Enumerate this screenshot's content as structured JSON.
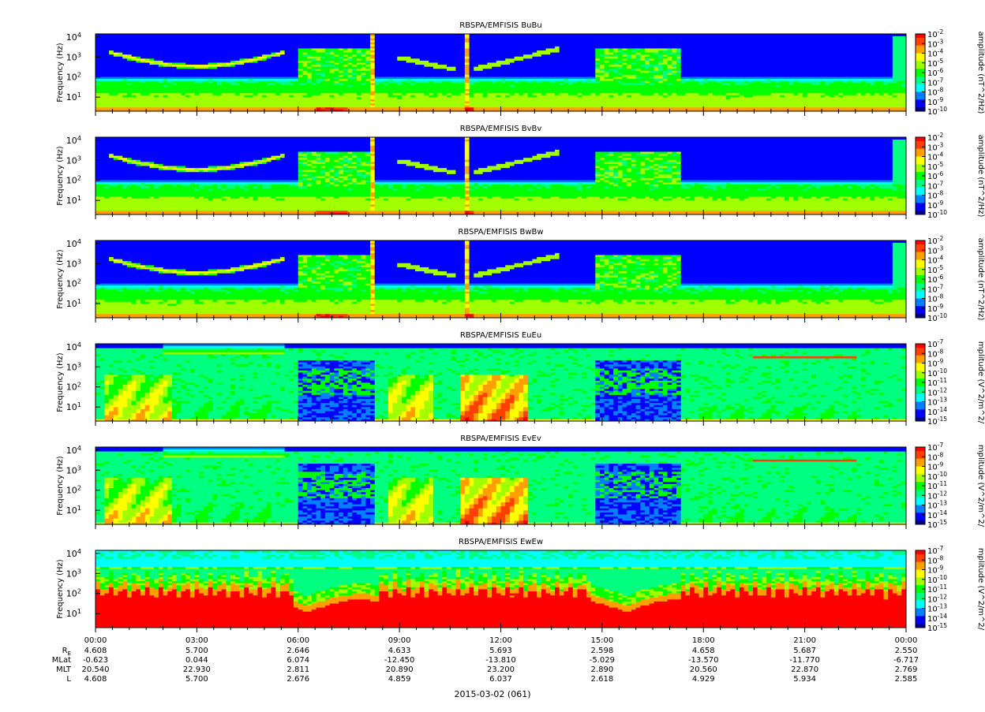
{
  "figure": {
    "date_label": "2015-03-02 (061)"
  },
  "chart_data": {
    "type": "heatmap",
    "x_axis": {
      "tick_labels": [
        "00:00",
        "03:00",
        "06:00",
        "09:00",
        "12:00",
        "15:00",
        "18:00",
        "21:00",
        "00:00"
      ],
      "tick_hours": [
        0,
        3,
        6,
        9,
        12,
        15,
        18,
        21,
        24
      ],
      "minor_tick_minutes": 30
    },
    "ephemeris": {
      "labels": [
        "R",
        "MLat",
        "MLT",
        "L"
      ],
      "re_subscript": "E",
      "rows": [
        [
          "4.608",
          "5.700",
          "2.646",
          "4.633",
          "5.693",
          "2.598",
          "4.658",
          "5.687",
          "2.550"
        ],
        [
          "-0.623",
          "0.044",
          "6.074",
          "-12.450",
          "-13.810",
          "-5.029",
          "-13.570",
          "-11.770",
          "-6.717"
        ],
        [
          "20.540",
          "22.930",
          "2.811",
          "20.890",
          "23.200",
          "2.890",
          "20.560",
          "22.870",
          "2.769"
        ],
        [
          "4.608",
          "5.700",
          "2.676",
          "4.859",
          "6.037",
          "2.618",
          "4.929",
          "5.934",
          "2.585"
        ]
      ]
    },
    "panels": [
      {
        "title": "RBSPA/EMFISIS  BuBu",
        "ylabel": "Frequency (Hz)",
        "y_scale": "log",
        "y_tick_labels": [
          "10^1",
          "10^2",
          "10^3",
          "10^4"
        ],
        "colorbar_label": "amplitude (nT^2/Hz)",
        "colorbar_tick_labels": [
          "10^-2",
          "10^-3",
          "10^-4",
          "10^-5",
          "10^-6",
          "10^-7",
          "10^-8",
          "10^-9",
          "10^-10"
        ],
        "kind": "B"
      },
      {
        "title": "RBSPA/EMFISIS  BvBv",
        "ylabel": "Frequency (Hz)",
        "y_scale": "log",
        "y_tick_labels": [
          "10^1",
          "10^2",
          "10^3",
          "10^4"
        ],
        "colorbar_label": "amplitude (nT^2/Hz)",
        "colorbar_tick_labels": [
          "10^-2",
          "10^-3",
          "10^-4",
          "10^-5",
          "10^-6",
          "10^-7",
          "10^-8",
          "10^-9",
          "10^-10"
        ],
        "kind": "B"
      },
      {
        "title": "RBSPA/EMFISIS  BwBw",
        "ylabel": "Frequency (Hz)",
        "y_scale": "log",
        "y_tick_labels": [
          "10^1",
          "10^2",
          "10^3",
          "10^4"
        ],
        "colorbar_label": "amplitude (nT^2/Hz)",
        "colorbar_tick_labels": [
          "10^-2",
          "10^-3",
          "10^-4",
          "10^-5",
          "10^-6",
          "10^-7",
          "10^-8",
          "10^-9",
          "10^-10"
        ],
        "kind": "B"
      },
      {
        "title": "RBSPA/EMFISIS  EuEu",
        "ylabel": "Frequency (Hz)",
        "y_scale": "log",
        "y_tick_labels": [
          "10^1",
          "10^2",
          "10^3",
          "10^4"
        ],
        "colorbar_label": "mplitude (V^2/m^2/",
        "colorbar_tick_labels": [
          "10^-7",
          "10^-8",
          "10^-9",
          "10^-10",
          "10^-11",
          "10^-12",
          "10^-13",
          "10^-14",
          "10^-15"
        ],
        "kind": "E"
      },
      {
        "title": "RBSPA/EMFISIS  EvEv",
        "ylabel": "Frequency (Hz)",
        "y_scale": "log",
        "y_tick_labels": [
          "10^1",
          "10^2",
          "10^3",
          "10^4"
        ],
        "colorbar_label": "mplitude (V^2/m^2/",
        "colorbar_tick_labels": [
          "10^-7",
          "10^-8",
          "10^-9",
          "10^-10",
          "10^-11",
          "10^-12",
          "10^-13",
          "10^-14",
          "10^-15"
        ],
        "kind": "E"
      },
      {
        "title": "RBSPA/EMFISIS  EwEw",
        "ylabel": "Frequency (Hz)",
        "y_scale": "log",
        "y_tick_labels": [
          "10^1",
          "10^2",
          "10^3",
          "10^4"
        ],
        "colorbar_label": "mplitude (V^2/m^2/",
        "colorbar_tick_labels": [
          "10^-7",
          "10^-8",
          "10^-9",
          "10^-10",
          "10^-11",
          "10^-12",
          "10^-13",
          "10^-14",
          "10^-15"
        ],
        "kind": "EW"
      }
    ],
    "colormap": [
      "#00008b",
      "#0000ff",
      "#0080ff",
      "#00ffff",
      "#00ff80",
      "#00ff00",
      "#a0ff00",
      "#ffff00",
      "#ffa000",
      "#ff4000",
      "#ff0000"
    ]
  }
}
